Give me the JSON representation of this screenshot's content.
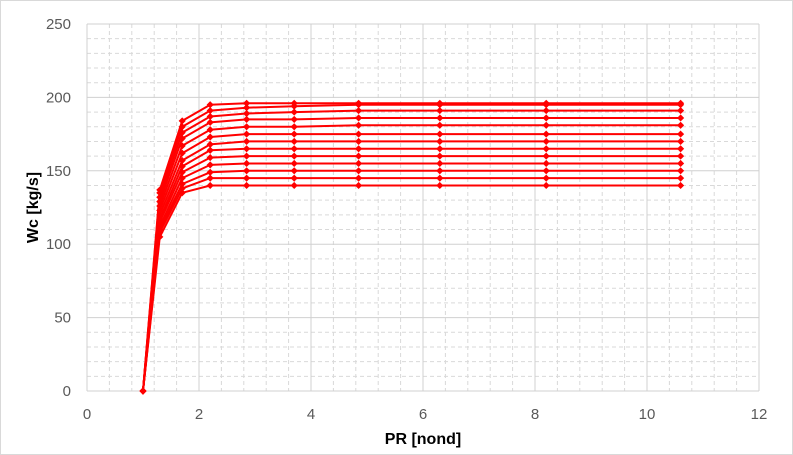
{
  "chart_data": {
    "type": "line",
    "title": "",
    "xlabel": "PR [nond]",
    "ylabel": "Wc [kg/s]",
    "xlim": [
      0,
      12
    ],
    "ylim": [
      0,
      250
    ],
    "xticks": [
      0,
      2,
      4,
      6,
      8,
      10,
      12
    ],
    "yticks": [
      0,
      50,
      100,
      150,
      200,
      250
    ],
    "x_minor_step": 0.4,
    "y_minor_step": 10,
    "grid": true,
    "minor_grid": true,
    "legend": "none",
    "colors": {
      "series": "#ff0000",
      "major_grid": "#d0d0d0",
      "minor_grid": "#d9d9d9",
      "tick_text": "#595959"
    },
    "origin_point": {
      "x": 1.0,
      "y": 0
    },
    "x": [
      1.3,
      1.7,
      2.2,
      2.85,
      3.7,
      4.85,
      6.3,
      8.2,
      10.6
    ],
    "series": [
      {
        "values": [
          105,
          135,
          140,
          140,
          140,
          140,
          140,
          140,
          140
        ]
      },
      {
        "values": [
          108,
          138,
          145,
          145,
          145,
          145,
          145,
          145,
          145
        ]
      },
      {
        "values": [
          110,
          141,
          149,
          150,
          150,
          150,
          150,
          150,
          150
        ]
      },
      {
        "values": [
          112,
          145,
          154,
          155,
          155,
          155,
          155,
          155,
          155
        ]
      },
      {
        "values": [
          115,
          149,
          159,
          160,
          160,
          160,
          160,
          160,
          160
        ]
      },
      {
        "values": [
          117,
          153,
          164,
          165,
          165,
          165,
          165,
          165,
          165
        ]
      },
      {
        "values": [
          120,
          157,
          168,
          170,
          170,
          170,
          170,
          170,
          170
        ]
      },
      {
        "values": [
          123,
          162,
          173,
          175,
          175,
          175,
          175,
          175,
          175
        ]
      },
      {
        "values": [
          126,
          167,
          178,
          180,
          180,
          181,
          181,
          181,
          181
        ]
      },
      {
        "values": [
          129,
          172,
          183,
          185,
          185,
          186,
          186,
          186,
          186
        ]
      },
      {
        "values": [
          132,
          176,
          187,
          189,
          190,
          191,
          191,
          191,
          191
        ]
      },
      {
        "values": [
          135,
          180,
          191,
          193,
          194,
          195,
          195,
          195,
          195
        ]
      },
      {
        "values": [
          137,
          184,
          195,
          196,
          196,
          196,
          196,
          196,
          196
        ]
      }
    ]
  }
}
